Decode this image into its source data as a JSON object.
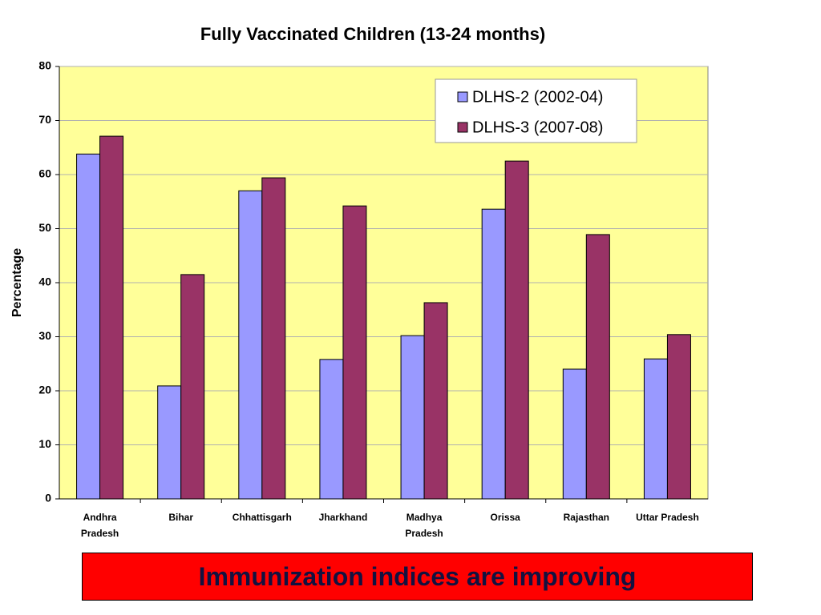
{
  "chart_data": {
    "type": "bar",
    "title": "Fully Vaccinated Children (13-24 months)",
    "y_label": "Percentage",
    "categories": [
      "Andhra Pradesh",
      "Bihar",
      "Chhattisgarh",
      "Jharkhand",
      "Madhya Pradesh",
      "Orissa",
      "Rajasthan",
      "Uttar Pradesh"
    ],
    "series": [
      {
        "name": "DLHS-2 (2002-04)",
        "color": "#9999ff",
        "values": [
          63.8,
          20.9,
          57.0,
          25.8,
          30.2,
          53.6,
          24.0,
          25.9
        ]
      },
      {
        "name": "DLHS-3 (2007-08)",
        "color": "#993366",
        "values": [
          67.1,
          41.5,
          59.4,
          54.2,
          36.3,
          62.5,
          48.9,
          30.4
        ]
      }
    ],
    "ylim": [
      0,
      80
    ],
    "yticks": [
      0,
      10,
      20,
      30,
      40,
      50,
      60,
      70,
      80
    ],
    "grid": true,
    "legend": "top-right",
    "plot_background": "#ffff99"
  },
  "banner": "Immunization indices are improving"
}
